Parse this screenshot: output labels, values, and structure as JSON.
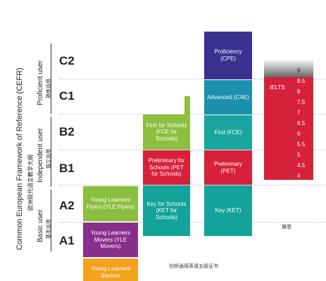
{
  "framework": {
    "title": "Common European Framework of Reference (CEFR)",
    "title_cn": "欧洲现代语言教学大纲"
  },
  "user_groups": [
    {
      "label": "Proficient user",
      "label_cn": "熟练运用"
    },
    {
      "label": "Independent user",
      "label_cn": "独立运用"
    },
    {
      "label": "Basic user",
      "label_cn": "基本运用"
    }
  ],
  "levels": [
    "C2",
    "C1",
    "B2",
    "B1",
    "A2",
    "A1"
  ],
  "yle": [
    {
      "label": "Young Learners Flyers (YLE Flyers)"
    },
    {
      "label": "Young Learners Movers (YLE Movers)"
    },
    {
      "label": "Young Learners Starters"
    }
  ],
  "schools": [
    {
      "label": "First for Schools (FCE for Schools)"
    },
    {
      "label": "Preliminary for Schools (PET for Schools)"
    },
    {
      "label": "Key for Schools (KET for Schools)"
    }
  ],
  "main": {
    "exams": [
      {
        "label": "Proficiency (CPE)"
      },
      {
        "label": "Advanced (CAE)"
      },
      {
        "label": "First (FCE)"
      },
      {
        "label": "Preliminary (PET)"
      },
      {
        "label": "Key (KET)"
      }
    ],
    "caption": "剑桥通用英语五级证书"
  },
  "ielts": {
    "title": "IELTS",
    "scores": [
      "9",
      "8.5",
      "8",
      "7.5",
      "7",
      "6.5",
      "6",
      "5.5",
      "5",
      "4.5",
      "4"
    ],
    "caption": "雅思"
  }
}
